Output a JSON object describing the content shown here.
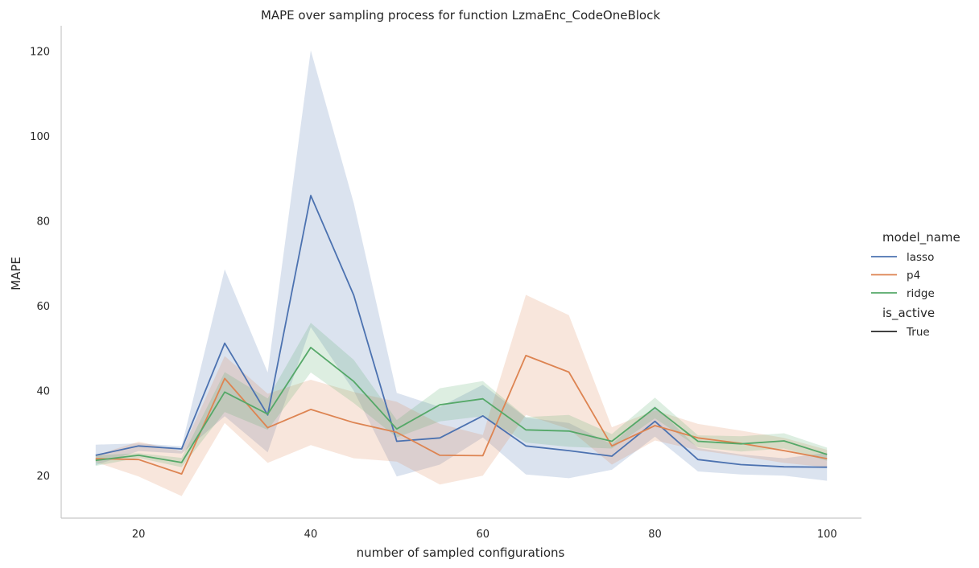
{
  "chart_data": {
    "type": "line",
    "title": "MAPE over sampling process for function LzmaEnc_CodeOneBlock",
    "xlabel": "number of sampled configurations",
    "ylabel": "MAPE",
    "xlim": [
      11,
      104
    ],
    "ylim": [
      10,
      126
    ],
    "xticks": [
      20,
      40,
      60,
      80,
      100
    ],
    "yticks": [
      20,
      40,
      60,
      80,
      100,
      120
    ],
    "grid": false,
    "legend_placement": "right",
    "legend": {
      "hue_title": "model_name",
      "style_title": "is_active",
      "style_entries": [
        "True"
      ]
    },
    "x": [
      15,
      20,
      25,
      30,
      35,
      40,
      45,
      50,
      55,
      60,
      65,
      70,
      75,
      80,
      85,
      90,
      95,
      100
    ],
    "series": [
      {
        "name": "lasso",
        "color": "#4c72b0",
        "values": [
          24.8,
          27.0,
          26.3,
          51.2,
          34.3,
          86.0,
          62.5,
          28.1,
          28.9,
          34.1,
          27.0,
          25.9,
          24.6,
          32.8,
          23.8,
          22.6,
          22.1,
          22.0
        ],
        "lower": [
          22.5,
          25.8,
          25.2,
          34.0,
          25.5,
          55.0,
          40.0,
          19.8,
          22.6,
          29.0,
          20.3,
          19.4,
          21.4,
          29.2,
          21.0,
          20.3,
          20.0,
          18.8
        ],
        "upper": [
          27.3,
          27.6,
          26.9,
          68.6,
          44.3,
          120.2,
          84.2,
          39.5,
          36.2,
          41.4,
          33.7,
          32.4,
          27.4,
          36.4,
          26.5,
          25.0,
          24.1,
          25.4
        ]
      },
      {
        "name": "p4",
        "color": "#dd8452",
        "values": [
          24.0,
          23.8,
          20.4,
          42.9,
          31.3,
          35.6,
          32.5,
          30.2,
          24.8,
          24.7,
          48.3,
          44.4,
          27.0,
          31.8,
          28.9,
          27.6,
          25.9,
          24.0
        ],
        "lower": [
          23.2,
          19.8,
          15.2,
          32.4,
          23.0,
          27.2,
          24.1,
          23.3,
          17.9,
          20.0,
          34.3,
          31.0,
          22.6,
          28.3,
          26.0,
          24.6,
          23.0,
          22.0
        ],
        "upper": [
          24.8,
          28.0,
          25.8,
          48.2,
          39.3,
          42.6,
          39.7,
          37.4,
          32.2,
          29.6,
          62.6,
          57.8,
          31.4,
          35.4,
          32.2,
          30.6,
          28.9,
          26.1
        ]
      },
      {
        "name": "ridge",
        "color": "#55a868",
        "values": [
          23.6,
          24.8,
          23.1,
          39.7,
          34.5,
          50.2,
          42.2,
          31.0,
          36.7,
          38.1,
          30.8,
          30.5,
          28.1,
          36.0,
          28.1,
          27.5,
          28.2,
          25.0
        ],
        "lower": [
          22.3,
          24.2,
          22.0,
          35.0,
          30.8,
          44.3,
          37.1,
          29.0,
          32.8,
          34.0,
          27.8,
          26.8,
          26.4,
          33.5,
          26.7,
          25.7,
          26.4,
          23.5
        ],
        "upper": [
          24.8,
          25.3,
          24.2,
          44.4,
          38.2,
          56.0,
          47.3,
          33.1,
          40.6,
          42.3,
          33.8,
          34.3,
          29.8,
          38.4,
          29.5,
          29.3,
          30.0,
          26.6
        ]
      }
    ]
  }
}
